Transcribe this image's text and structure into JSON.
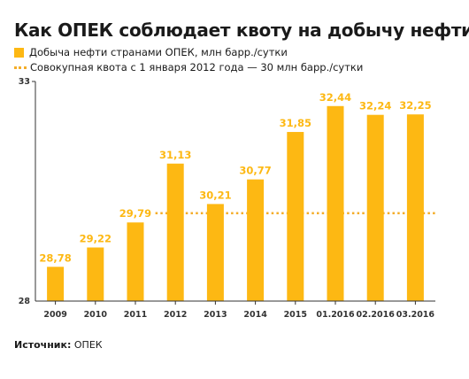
{
  "chart_data": {
    "type": "bar",
    "title": "Как ОПЕК соблюдает квоту на добычу нефти",
    "categories": [
      "2009",
      "2010",
      "2011",
      "2012",
      "2013",
      "2014",
      "2015",
      "01.2016",
      "02.2016",
      "03.2016"
    ],
    "series": [
      {
        "name": "Добыча нефти странами ОПЕК, млн барр./сутки",
        "values": [
          28.78,
          29.22,
          29.79,
          31.13,
          30.21,
          30.77,
          31.85,
          32.44,
          32.24,
          32.25
        ],
        "labels": [
          "28,78",
          "29,22",
          "29,79",
          "31,13",
          "30,21",
          "30,77",
          "31,85",
          "32,44",
          "32,24",
          "32,25"
        ]
      }
    ],
    "quota": {
      "name": "Совокупная квота с 1 января 2012 года — 30 млн барр./сутки",
      "value": 30,
      "start_index": 3
    },
    "ylim": [
      28,
      33
    ],
    "ytick_labels": [
      "33",
      "28"
    ],
    "grid": false,
    "legend_placement": "top-left",
    "colors": {
      "bar": "#fdb813",
      "quota": "#f4ad29",
      "axis": "#333333"
    }
  },
  "source": {
    "label": "Источник:",
    "value": "ОПЕК"
  }
}
